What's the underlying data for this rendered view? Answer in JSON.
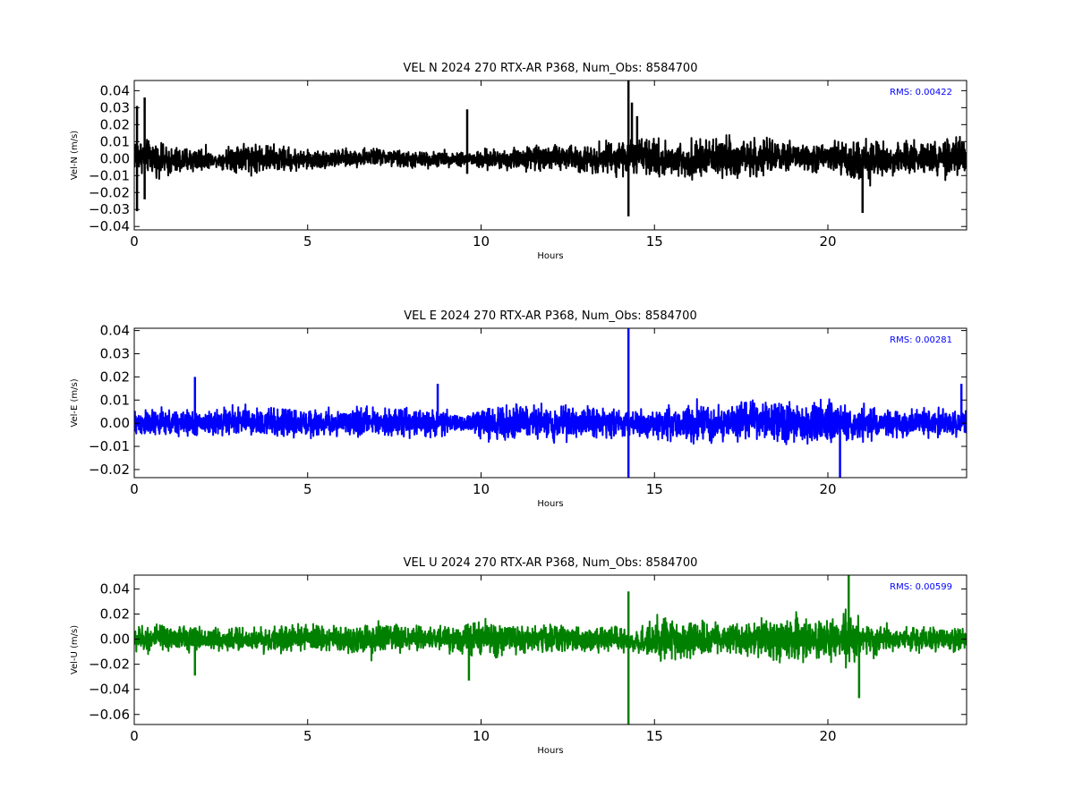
{
  "chart_data": [
    {
      "type": "line",
      "title": "VEL N 2024 270 RTX-AR  P368, Num_Obs: 8584700",
      "xlabel": "Hours",
      "ylabel": "Vel-N (m/s)",
      "xlim": [
        0,
        24
      ],
      "ylim": [
        -0.042,
        0.046
      ],
      "xticks": [
        "0",
        "5",
        "10",
        "15",
        "20"
      ],
      "yticks": [
        "0.04",
        "0.03",
        "0.02",
        "0.01",
        "0.00",
        "−0.01",
        "−0.02",
        "−0.03",
        "−0.04"
      ],
      "annotation": "RMS:  0.00422",
      "color": "#000000",
      "grid": false,
      "series": [
        {
          "x": [
            0,
            1,
            2,
            2.3,
            3,
            4,
            5,
            6,
            7,
            8,
            9,
            9.6,
            10,
            11,
            12,
            13,
            14,
            14.3,
            15,
            16,
            17,
            18,
            19,
            20,
            21,
            22,
            23,
            24
          ],
          "values": [
            0.003,
            -0.002,
            0.0,
            -0.001,
            0.001,
            0.0,
            -0.001,
            0.0,
            0.001,
            -0.001,
            0.0,
            0.0,
            -0.001,
            0.0,
            0.001,
            0.0,
            0.001,
            0.001,
            0.0,
            -0.001,
            0.001,
            0.0,
            0.001,
            0.0,
            -0.001,
            0.0,
            0.0,
            0.0
          ],
          "envelope": [
            0.014,
            0.012,
            0.01,
            0.004,
            0.013,
            0.011,
            0.008,
            0.007,
            0.007,
            0.007,
            0.006,
            0.006,
            0.008,
            0.009,
            0.01,
            0.011,
            0.014,
            0.013,
            0.015,
            0.014,
            0.016,
            0.015,
            0.011,
            0.012,
            0.018,
            0.012,
            0.014,
            0.016
          ],
          "spikes": [
            {
              "x": 0.08,
              "y": 0.031
            },
            {
              "x": 0.08,
              "y": -0.031
            },
            {
              "x": 0.3,
              "y": 0.036
            },
            {
              "x": 0.3,
              "y": -0.024
            },
            {
              "x": 9.6,
              "y": 0.029
            },
            {
              "x": 9.6,
              "y": -0.009
            },
            {
              "x": 14.25,
              "y": 0.046
            },
            {
              "x": 14.25,
              "y": -0.034
            },
            {
              "x": 14.35,
              "y": 0.033
            },
            {
              "x": 14.5,
              "y": 0.025
            },
            {
              "x": 21.0,
              "y": -0.032
            }
          ]
        }
      ]
    },
    {
      "type": "line",
      "title": "VEL E 2024 270 RTX-AR  P368, Num_Obs: 8584700",
      "xlabel": "Hours",
      "ylabel": "Vel-E (m/s)",
      "xlim": [
        0,
        24
      ],
      "ylim": [
        -0.0235,
        0.041
      ],
      "xticks": [
        "0",
        "5",
        "10",
        "15",
        "20"
      ],
      "yticks": [
        "0.04",
        "0.03",
        "0.02",
        "0.01",
        "0.00",
        "−0.01",
        "−0.02"
      ],
      "annotation": "RMS:  0.00281",
      "color": "#0000ff",
      "grid": false,
      "series": [
        {
          "x": [
            0,
            1,
            2,
            3,
            4,
            5,
            6,
            7,
            8,
            9,
            9.5,
            10,
            11,
            12,
            13,
            14,
            14.3,
            15,
            16,
            17,
            18,
            19,
            20,
            21,
            22,
            23,
            24
          ],
          "values": [
            0.0,
            0.0,
            0.0,
            0.001,
            0.0,
            0.0,
            0.0,
            0.001,
            0.0,
            0.0,
            0.0,
            0.0,
            0.001,
            0.0,
            0.001,
            0.0,
            0.0,
            0.0,
            0.0,
            0.0,
            0.001,
            0.0,
            0.0,
            0.0,
            0.0,
            0.0,
            0.0
          ],
          "envelope": [
            0.008,
            0.008,
            0.007,
            0.009,
            0.009,
            0.008,
            0.008,
            0.008,
            0.008,
            0.007,
            0.004,
            0.009,
            0.01,
            0.01,
            0.009,
            0.008,
            0.007,
            0.009,
            0.012,
            0.011,
            0.011,
            0.012,
            0.012,
            0.01,
            0.008,
            0.008,
            0.008
          ],
          "spikes": [
            {
              "x": 1.75,
              "y": 0.02
            },
            {
              "x": 8.75,
              "y": 0.017
            },
            {
              "x": 14.25,
              "y": 0.041
            },
            {
              "x": 14.25,
              "y": -0.0235
            },
            {
              "x": 20.35,
              "y": -0.0235
            },
            {
              "x": 23.85,
              "y": 0.017
            }
          ]
        }
      ]
    },
    {
      "type": "line",
      "title": "VEL U 2024 270 RTX-AR  P368, Num_Obs: 8584700",
      "xlabel": "Hours",
      "ylabel": "Vel-U (m/s)",
      "xlim": [
        0,
        24
      ],
      "ylim": [
        -0.068,
        0.051
      ],
      "xticks": [
        "0",
        "5",
        "10",
        "15",
        "20"
      ],
      "yticks": [
        "0.04",
        "0.02",
        "0.00",
        "−0.02",
        "−0.04",
        "−0.06"
      ],
      "annotation": "RMS:  0.00599",
      "color": "#008000",
      "grid": false,
      "series": [
        {
          "x": [
            0,
            1,
            2,
            3,
            4,
            5,
            6,
            7,
            8,
            9,
            10,
            11,
            12,
            13,
            14,
            14.3,
            15,
            16,
            17,
            18,
            19,
            20,
            20.7,
            21,
            22,
            23,
            24
          ],
          "values": [
            0.0,
            0.001,
            0.0,
            0.0,
            0.0,
            0.001,
            0.0,
            0.0,
            0.0,
            0.001,
            0.0,
            0.0,
            0.001,
            0.0,
            0.0,
            -0.003,
            0.0,
            -0.001,
            0.0,
            0.001,
            0.0,
            0.0,
            0.0,
            0.0,
            0.0,
            0.0,
            0.0
          ],
          "envelope": [
            0.014,
            0.015,
            0.013,
            0.014,
            0.013,
            0.014,
            0.015,
            0.019,
            0.014,
            0.013,
            0.021,
            0.015,
            0.015,
            0.014,
            0.013,
            0.01,
            0.022,
            0.02,
            0.017,
            0.02,
            0.024,
            0.018,
            0.03,
            0.019,
            0.014,
            0.014,
            0.014
          ],
          "spikes": [
            {
              "x": 1.75,
              "y": -0.029
            },
            {
              "x": 9.65,
              "y": -0.033
            },
            {
              "x": 14.25,
              "y": 0.038
            },
            {
              "x": 14.25,
              "y": -0.068
            },
            {
              "x": 20.6,
              "y": 0.051
            },
            {
              "x": 20.9,
              "y": -0.047
            }
          ]
        }
      ]
    }
  ]
}
